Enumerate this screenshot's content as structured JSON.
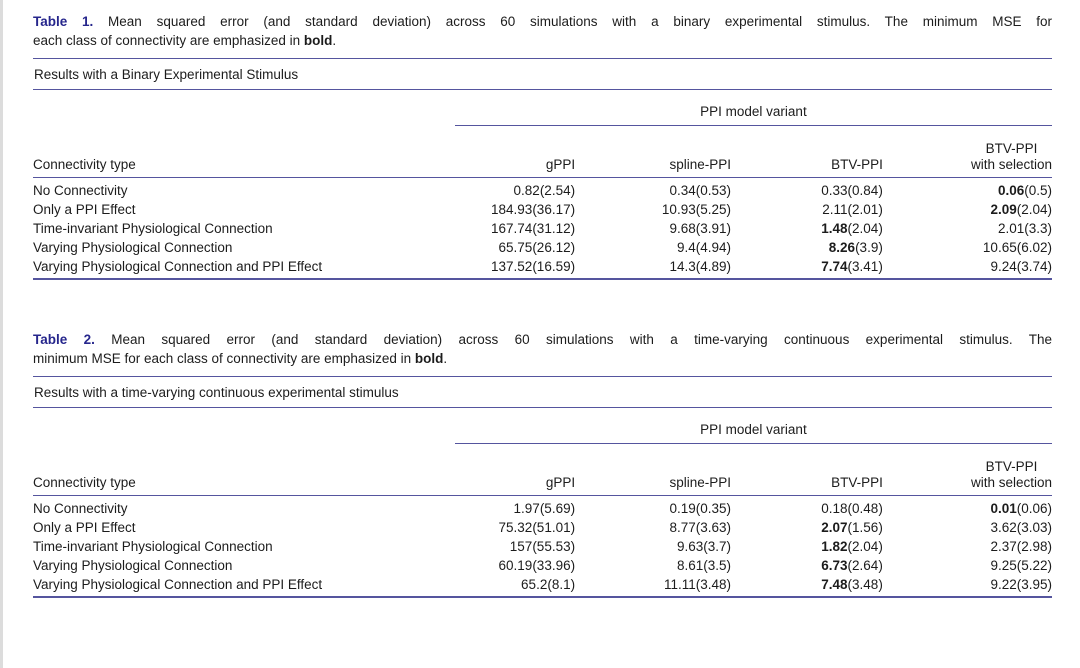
{
  "colors": {
    "accent_navy": "#26268c",
    "rule_blue": "#55559e",
    "text": "#1c1c1c"
  },
  "tables": [
    {
      "caption": {
        "label": "Table 1.",
        "line1": "Mean squared error (and standard deviation) across 60 simulations with a binary experimental stimulus. The minimum MSE for",
        "line2_prefix": "each class of connectivity are emphasized in ",
        "line2_bold": "bold",
        "line2_suffix": "."
      },
      "subtitle": "Results with a Binary Experimental Stimulus",
      "spanner": "PPI model variant",
      "columns": {
        "label": "Connectivity type",
        "gppi": "gPPI",
        "spline": "spline-PPI",
        "btv": "BTV-PPI",
        "btv_sel_line1": "BTV-PPI",
        "btv_sel_line2": "with selection"
      },
      "rows": [
        {
          "label": "No Connectivity",
          "cells": [
            {
              "m": "0.82",
              "s": "(2.54)",
              "b": 0
            },
            {
              "m": "0.34",
              "s": "(0.53)",
              "b": 0
            },
            {
              "m": "0.33",
              "s": "(0.84)",
              "b": 0
            },
            {
              "m": "0.06",
              "s": "(0.5)",
              "b": 1
            }
          ]
        },
        {
          "label": "Only a PPI Effect",
          "cells": [
            {
              "m": "184.93",
              "s": "(36.17)",
              "b": 0
            },
            {
              "m": "10.93",
              "s": "(5.25)",
              "b": 0
            },
            {
              "m": "2.11",
              "s": "(2.01)",
              "b": 0
            },
            {
              "m": "2.09",
              "s": "(2.04)",
              "b": 1
            }
          ]
        },
        {
          "label": "Time-invariant Physiological Connection",
          "cells": [
            {
              "m": "167.74",
              "s": "(31.12)",
              "b": 0
            },
            {
              "m": "9.68",
              "s": "(3.91)",
              "b": 0
            },
            {
              "m": "1.48",
              "s": "(2.04)",
              "b": 1
            },
            {
              "m": "2.01",
              "s": "(3.3)",
              "b": 0
            }
          ]
        },
        {
          "label": "Varying Physiological Connection",
          "cells": [
            {
              "m": "65.75",
              "s": "(26.12)",
              "b": 0
            },
            {
              "m": "9.4",
              "s": "(4.94)",
              "b": 0
            },
            {
              "m": "8.26",
              "s": "(3.9)",
              "b": 1
            },
            {
              "m": "10.65",
              "s": "(6.02)",
              "b": 0
            }
          ]
        },
        {
          "label": "Varying Physiological Connection and PPI Effect",
          "cells": [
            {
              "m": "137.52",
              "s": "(16.59)",
              "b": 0
            },
            {
              "m": "14.3",
              "s": "(4.89)",
              "b": 0
            },
            {
              "m": "7.74",
              "s": "(3.41)",
              "b": 1
            },
            {
              "m": "9.24",
              "s": "(3.74)",
              "b": 0
            }
          ]
        }
      ]
    },
    {
      "caption": {
        "label": "Table 2.",
        "line1": "Mean squared error (and standard deviation) across 60 simulations with a time-varying continuous experimental stimulus. The",
        "line2_prefix": "minimum MSE for each class of connectivity are emphasized in ",
        "line2_bold": "bold",
        "line2_suffix": "."
      },
      "subtitle": "Results with a time-varying continuous experimental stimulus",
      "spanner": "PPI model variant",
      "columns": {
        "label": "Connectivity type",
        "gppi": "gPPI",
        "spline": "spline-PPI",
        "btv": "BTV-PPI",
        "btv_sel_line1": "BTV-PPI",
        "btv_sel_line2": "with selection"
      },
      "rows": [
        {
          "label": "No Connectivity",
          "cells": [
            {
              "m": "1.97",
              "s": "(5.69)",
              "b": 0
            },
            {
              "m": "0.19",
              "s": "(0.35)",
              "b": 0
            },
            {
              "m": "0.18",
              "s": "(0.48)",
              "b": 0
            },
            {
              "m": "0.01",
              "s": "(0.06)",
              "b": 1
            }
          ]
        },
        {
          "label": "Only a PPI Effect",
          "cells": [
            {
              "m": "75.32",
              "s": "(51.01)",
              "b": 0
            },
            {
              "m": "8.77",
              "s": "(3.63)",
              "b": 0
            },
            {
              "m": "2.07",
              "s": "(1.56)",
              "b": 1
            },
            {
              "m": "3.62",
              "s": "(3.03)",
              "b": 0
            }
          ]
        },
        {
          "label": "Time-invariant Physiological Connection",
          "cells": [
            {
              "m": "157",
              "s": "(55.53)",
              "b": 0
            },
            {
              "m": "9.63",
              "s": "(3.7)",
              "b": 0
            },
            {
              "m": "1.82",
              "s": "(2.04)",
              "b": 1
            },
            {
              "m": "2.37",
              "s": "(2.98)",
              "b": 0
            }
          ]
        },
        {
          "label": "Varying Physiological Connection",
          "cells": [
            {
              "m": "60.19",
              "s": "(33.96)",
              "b": 0
            },
            {
              "m": "8.61",
              "s": "(3.5)",
              "b": 0
            },
            {
              "m": "6.73",
              "s": "(2.64)",
              "b": 1
            },
            {
              "m": "9.25",
              "s": "(5.22)",
              "b": 0
            }
          ]
        },
        {
          "label": "Varying Physiological Connection and PPI Effect",
          "cells": [
            {
              "m": "65.2",
              "s": "(8.1)",
              "b": 0
            },
            {
              "m": "11.11",
              "s": "(3.48)",
              "b": 0
            },
            {
              "m": "7.48",
              "s": "(3.48)",
              "b": 1
            },
            {
              "m": "9.22",
              "s": "(3.95)",
              "b": 0
            }
          ]
        }
      ]
    }
  ]
}
